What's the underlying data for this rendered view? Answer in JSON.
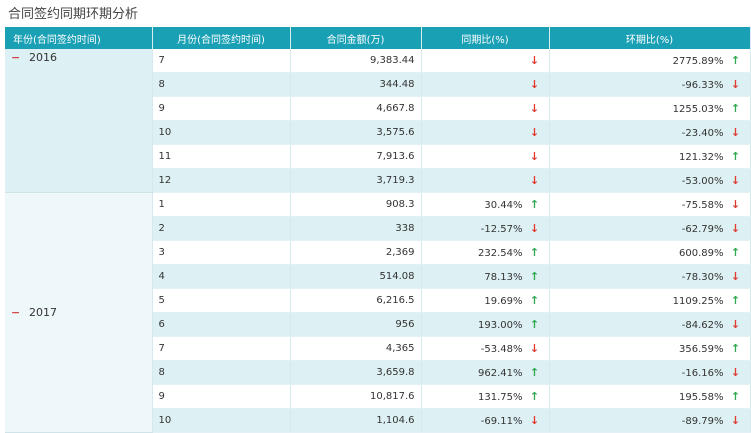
{
  "title": "合同签约同期环期分析",
  "columns": [
    "年份(合同签约时间)",
    "月份(合同签约时间)",
    "合同金额(万)",
    "同期比(%)",
    "环期比(%)"
  ],
  "groups": [
    {
      "year": "2016",
      "rows": [
        {
          "month": "7",
          "amount": "9,383.44",
          "yoy": "",
          "yoy_dir": "down",
          "mom": "2775.89%",
          "mom_dir": "up"
        },
        {
          "month": "8",
          "amount": "344.48",
          "yoy": "",
          "yoy_dir": "down",
          "mom": "-96.33%",
          "mom_dir": "down"
        },
        {
          "month": "9",
          "amount": "4,667.8",
          "yoy": "",
          "yoy_dir": "down",
          "mom": "1255.03%",
          "mom_dir": "up"
        },
        {
          "month": "10",
          "amount": "3,575.6",
          "yoy": "",
          "yoy_dir": "down",
          "mom": "-23.40%",
          "mom_dir": "down"
        },
        {
          "month": "11",
          "amount": "7,913.6",
          "yoy": "",
          "yoy_dir": "down",
          "mom": "121.32%",
          "mom_dir": "up"
        },
        {
          "month": "12",
          "amount": "3,719.3",
          "yoy": "",
          "yoy_dir": "down",
          "mom": "-53.00%",
          "mom_dir": "down"
        }
      ]
    },
    {
      "year": "2017",
      "rows": [
        {
          "month": "1",
          "amount": "908.3",
          "yoy": "30.44%",
          "yoy_dir": "up",
          "mom": "-75.58%",
          "mom_dir": "down"
        },
        {
          "month": "2",
          "amount": "338",
          "yoy": "-12.57%",
          "yoy_dir": "down",
          "mom": "-62.79%",
          "mom_dir": "down"
        },
        {
          "month": "3",
          "amount": "2,369",
          "yoy": "232.54%",
          "yoy_dir": "up",
          "mom": "600.89%",
          "mom_dir": "up"
        },
        {
          "month": "4",
          "amount": "514.08",
          "yoy": "78.13%",
          "yoy_dir": "up",
          "mom": "-78.30%",
          "mom_dir": "down"
        },
        {
          "month": "5",
          "amount": "6,216.5",
          "yoy": "19.69%",
          "yoy_dir": "up",
          "mom": "1109.25%",
          "mom_dir": "up"
        },
        {
          "month": "6",
          "amount": "956",
          "yoy": "193.00%",
          "yoy_dir": "up",
          "mom": "-84.62%",
          "mom_dir": "down"
        },
        {
          "month": "7",
          "amount": "4,365",
          "yoy": "-53.48%",
          "yoy_dir": "down",
          "mom": "356.59%",
          "mom_dir": "up"
        },
        {
          "month": "8",
          "amount": "3,659.8",
          "yoy": "962.41%",
          "yoy_dir": "up",
          "mom": "-16.16%",
          "mom_dir": "down"
        },
        {
          "month": "9",
          "amount": "10,817.6",
          "yoy": "131.75%",
          "yoy_dir": "up",
          "mom": "195.58%",
          "mom_dir": "up"
        },
        {
          "month": "10",
          "amount": "1,104.6",
          "yoy": "-69.11%",
          "yoy_dir": "down",
          "mom": "-89.79%",
          "mom_dir": "down"
        }
      ]
    }
  ],
  "toggle_symbol": "−",
  "icons": {
    "up": "arrow-up-icon",
    "down": "arrow-down-icon"
  },
  "colors": {
    "header_bg": "#1aa0b5",
    "up": "#2fa84f",
    "down": "#e03a30",
    "band": "#ddf0f4"
  }
}
